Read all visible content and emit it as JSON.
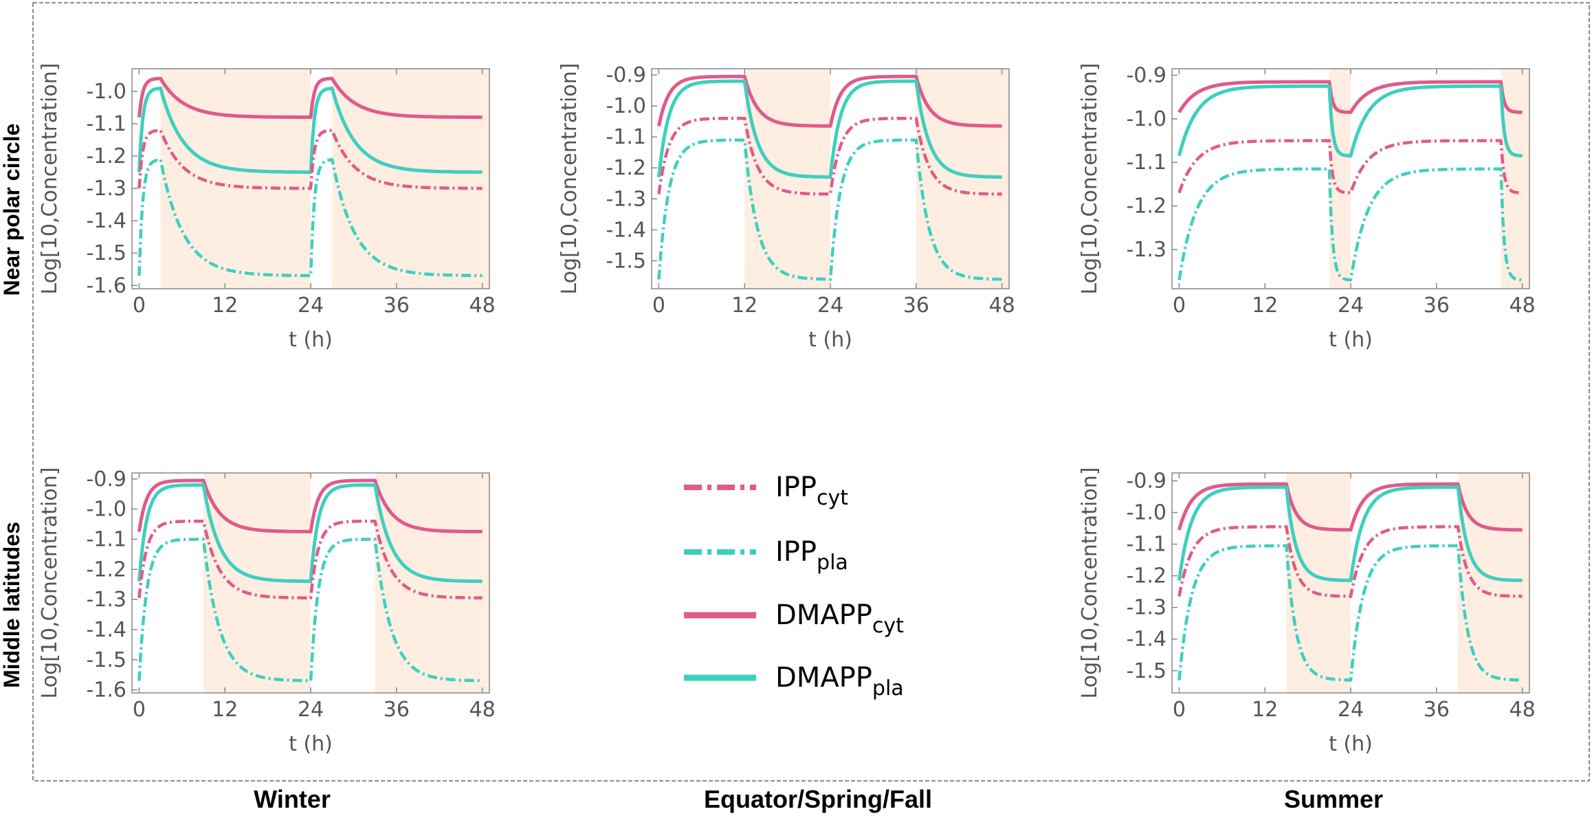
{
  "figure": {
    "row_labels": [
      "Near polar circle",
      "Middle latitudes"
    ],
    "col_labels": [
      "Winter",
      "Equator/Spring/Fall",
      "Summer"
    ],
    "colors": {
      "cyt": "#e05a8a",
      "pla": "#3ecfbf",
      "night": "#fdeee1",
      "frame": "#888888"
    }
  },
  "legend": [
    {
      "base": "IPP",
      "sub": "cyt",
      "style": "dashdot",
      "color": "#e05a8a"
    },
    {
      "base": "IPP",
      "sub": "pla",
      "style": "dashdot",
      "color": "#3ecfbf"
    },
    {
      "base": "DMAPP",
      "sub": "cyt",
      "style": "solid",
      "color": "#e05a8a"
    },
    {
      "base": "DMAPP",
      "sub": "pla",
      "style": "solid",
      "color": "#3ecfbf"
    }
  ],
  "chart_data": [
    {
      "type": "line",
      "id": "polar-winter",
      "row": "Near polar circle",
      "column": "Winter",
      "xlabel": "t (h)",
      "ylabel": "Log[10,Concentration]",
      "xlim": [
        -1,
        49
      ],
      "ylim": [
        -1.61,
        -0.93
      ],
      "xticks": [
        0,
        12,
        24,
        36,
        48
      ],
      "yticks": [
        -1.6,
        -1.5,
        -1.4,
        -1.3,
        -1.2,
        -1.1,
        -1.0
      ],
      "ytick_labels": [
        "-1.6",
        "-1.5",
        "-1.4",
        "-1.3",
        "-1.2",
        "-1.1",
        "-1.0"
      ],
      "night_bands": [
        [
          3,
          24
        ],
        [
          27,
          49
        ]
      ],
      "series": [
        {
          "name": "DMAPP_cyt",
          "style": "solid",
          "color": "#e05a8a",
          "day_start": -1.07,
          "plateau": -0.96,
          "day_end": -0.96,
          "night_end": -1.08,
          "phase_shift": 0,
          "dip": null
        },
        {
          "name": "DMAPP_pla",
          "style": "solid",
          "color": "#3ecfbf",
          "day_start": -1.17,
          "plateau": -0.99,
          "day_end": -0.99,
          "night_end": -1.25,
          "phase_shift": 0,
          "dip": null
        },
        {
          "name": "IPP_cyt",
          "style": "dashdot",
          "color": "#e05a8a",
          "day_start": -1.31,
          "plateau": -1.12,
          "day_end": -1.12,
          "night_end": -1.3,
          "phase_shift": 0,
          "dip": null
        },
        {
          "name": "IPP_pla",
          "style": "dashdot",
          "color": "#3ecfbf",
          "day_start": -1.46,
          "plateau": -1.21,
          "day_end": -1.21,
          "night_end": -1.57,
          "phase_shift": 0,
          "dip": null
        }
      ]
    },
    {
      "type": "line",
      "id": "polar-equinox",
      "row": "Near polar circle",
      "column": "Equator/Spring/Fall",
      "xlabel": "t (h)",
      "ylabel": "Log[10,Concentration]",
      "xlim": [
        -1,
        49
      ],
      "ylim": [
        -1.59,
        -0.88
      ],
      "xticks": [
        0,
        12,
        24,
        36,
        48
      ],
      "yticks": [
        -1.5,
        -1.4,
        -1.3,
        -1.2,
        -1.1,
        -1.0,
        -0.9
      ],
      "ytick_labels": [
        "-1.5",
        "-1.4",
        "-1.3",
        "-1.2",
        "-1.1",
        "-1.0",
        "-0.9"
      ],
      "night_bands": [
        [
          12,
          24
        ],
        [
          36,
          49
        ]
      ],
      "series": [
        {
          "name": "DMAPP_cyt",
          "style": "solid",
          "color": "#e05a8a",
          "day_start": -1.07,
          "plateau": -0.905,
          "day_end": -0.905,
          "night_end": -1.065,
          "phase_shift": 0,
          "dip": null
        },
        {
          "name": "DMAPP_pla",
          "style": "solid",
          "color": "#3ecfbf",
          "day_start": -1.16,
          "plateau": -0.92,
          "day_end": -0.92,
          "night_end": -1.23,
          "phase_shift": 0,
          "dip": null
        },
        {
          "name": "IPP_cyt",
          "style": "dashdot",
          "color": "#e05a8a",
          "day_start": -1.29,
          "plateau": -1.04,
          "day_end": -1.04,
          "night_end": -1.285,
          "phase_shift": 0,
          "dip": null
        },
        {
          "name": "IPP_pla",
          "style": "dashdot",
          "color": "#3ecfbf",
          "day_start": -1.45,
          "plateau": -1.11,
          "day_end": -1.11,
          "night_end": -1.56,
          "phase_shift": 0,
          "dip": null
        }
      ]
    },
    {
      "type": "line",
      "id": "polar-summer",
      "row": "Near polar circle",
      "column": "Summer",
      "xlabel": "t (h)",
      "ylabel": "Log[10,Concentration]",
      "xlim": [
        -1,
        49
      ],
      "ylim": [
        -1.39,
        -0.885
      ],
      "xticks": [
        0,
        12,
        24,
        36,
        48
      ],
      "yticks": [
        -1.3,
        -1.2,
        -1.1,
        -1.0,
        -0.9
      ],
      "ytick_labels": [
        "-1.3",
        "-1.2",
        "-1.1",
        "-1.0",
        "-0.9"
      ],
      "night_bands": [
        [
          21,
          24
        ],
        [
          45,
          49
        ]
      ],
      "series": [
        {
          "name": "DMAPP_cyt",
          "style": "solid",
          "color": "#e05a8a",
          "day_start": -0.985,
          "plateau": -0.915,
          "day_end": -0.915,
          "night_end": -0.985,
          "phase_shift": 0,
          "dip": null
        },
        {
          "name": "DMAPP_pla",
          "style": "solid",
          "color": "#3ecfbf",
          "day_start": -1.08,
          "plateau": -0.925,
          "day_end": -0.925,
          "night_end": -1.085,
          "phase_shift": 0,
          "dip": null
        },
        {
          "name": "IPP_cyt",
          "style": "dashdot",
          "color": "#e05a8a",
          "day_start": -1.16,
          "plateau": -1.05,
          "day_end": -1.05,
          "night_end": -1.17,
          "phase_shift": 0,
          "dip": null
        },
        {
          "name": "IPP_pla",
          "style": "dashdot",
          "color": "#3ecfbf",
          "day_start": -1.34,
          "plateau": -1.115,
          "day_end": -1.115,
          "night_end": -1.37,
          "phase_shift": 0,
          "dip": null
        }
      ]
    },
    {
      "type": "line",
      "id": "middle-winter",
      "row": "Middle latitudes",
      "column": "Winter",
      "xlabel": "t (h)",
      "ylabel": "Log[10,Concentration]",
      "xlim": [
        -1,
        49
      ],
      "ylim": [
        -1.61,
        -0.88
      ],
      "xticks": [
        0,
        12,
        24,
        36,
        48
      ],
      "yticks": [
        -1.6,
        -1.5,
        -1.4,
        -1.3,
        -1.2,
        -1.1,
        -1.0,
        -0.9
      ],
      "ytick_labels": [
        "-1.6",
        "-1.5",
        "-1.4",
        "-1.3",
        "-1.2",
        "-1.1",
        "-1.0",
        "-0.9"
      ],
      "night_bands": [
        [
          9,
          24
        ],
        [
          33,
          49
        ]
      ],
      "series": [
        {
          "name": "DMAPP_cyt",
          "style": "solid",
          "color": "#e05a8a",
          "day_start": -1.07,
          "plateau": -0.905,
          "day_end": -0.905,
          "night_end": -1.075,
          "phase_shift": 0,
          "dip": null
        },
        {
          "name": "DMAPP_pla",
          "style": "solid",
          "color": "#3ecfbf",
          "day_start": -1.16,
          "plateau": -0.92,
          "day_end": -0.92,
          "night_end": -1.24,
          "phase_shift": 0,
          "dip": null
        },
        {
          "name": "IPP_cyt",
          "style": "dashdot",
          "color": "#e05a8a",
          "day_start": -1.3,
          "plateau": -1.04,
          "day_end": -1.04,
          "night_end": -1.295,
          "phase_shift": 0,
          "dip": null
        },
        {
          "name": "IPP_pla",
          "style": "dashdot",
          "color": "#3ecfbf",
          "day_start": -1.46,
          "plateau": -1.1,
          "day_end": -1.1,
          "night_end": -1.57,
          "phase_shift": 0,
          "dip": null
        }
      ]
    },
    {
      "type": "line",
      "id": "middle-summer",
      "row": "Middle latitudes",
      "column": "Summer",
      "xlabel": "t (h)",
      "ylabel": "Log[10,Concentration]",
      "xlim": [
        -1,
        49
      ],
      "ylim": [
        -1.57,
        -0.875
      ],
      "xticks": [
        0,
        12,
        24,
        36,
        48
      ],
      "yticks": [
        -1.5,
        -1.4,
        -1.3,
        -1.2,
        -1.1,
        -1.0,
        -0.9
      ],
      "ytick_labels": [
        "-1.5",
        "-1.4",
        "-1.3",
        "-1.2",
        "-1.1",
        "-1.0",
        "-0.9"
      ],
      "night_bands": [
        [
          15,
          24
        ],
        [
          39,
          49
        ]
      ],
      "series": [
        {
          "name": "DMAPP_cyt",
          "style": "solid",
          "color": "#e05a8a",
          "day_start": -1.06,
          "plateau": -0.91,
          "day_end": -0.91,
          "night_end": -1.055,
          "phase_shift": 0,
          "dip": null
        },
        {
          "name": "DMAPP_pla",
          "style": "solid",
          "color": "#3ecfbf",
          "day_start": -1.155,
          "plateau": -0.92,
          "day_end": -0.92,
          "night_end": -1.215,
          "phase_shift": 0,
          "dip": null
        },
        {
          "name": "IPP_cyt",
          "style": "dashdot",
          "color": "#e05a8a",
          "day_start": -1.28,
          "plateau": -1.045,
          "day_end": -1.045,
          "night_end": -1.265,
          "phase_shift": 0,
          "dip": null
        },
        {
          "name": "IPP_pla",
          "style": "dashdot",
          "color": "#3ecfbf",
          "day_start": -1.44,
          "plateau": -1.105,
          "day_end": -1.105,
          "night_end": -1.53,
          "phase_shift": 0,
          "dip": null
        }
      ]
    }
  ]
}
